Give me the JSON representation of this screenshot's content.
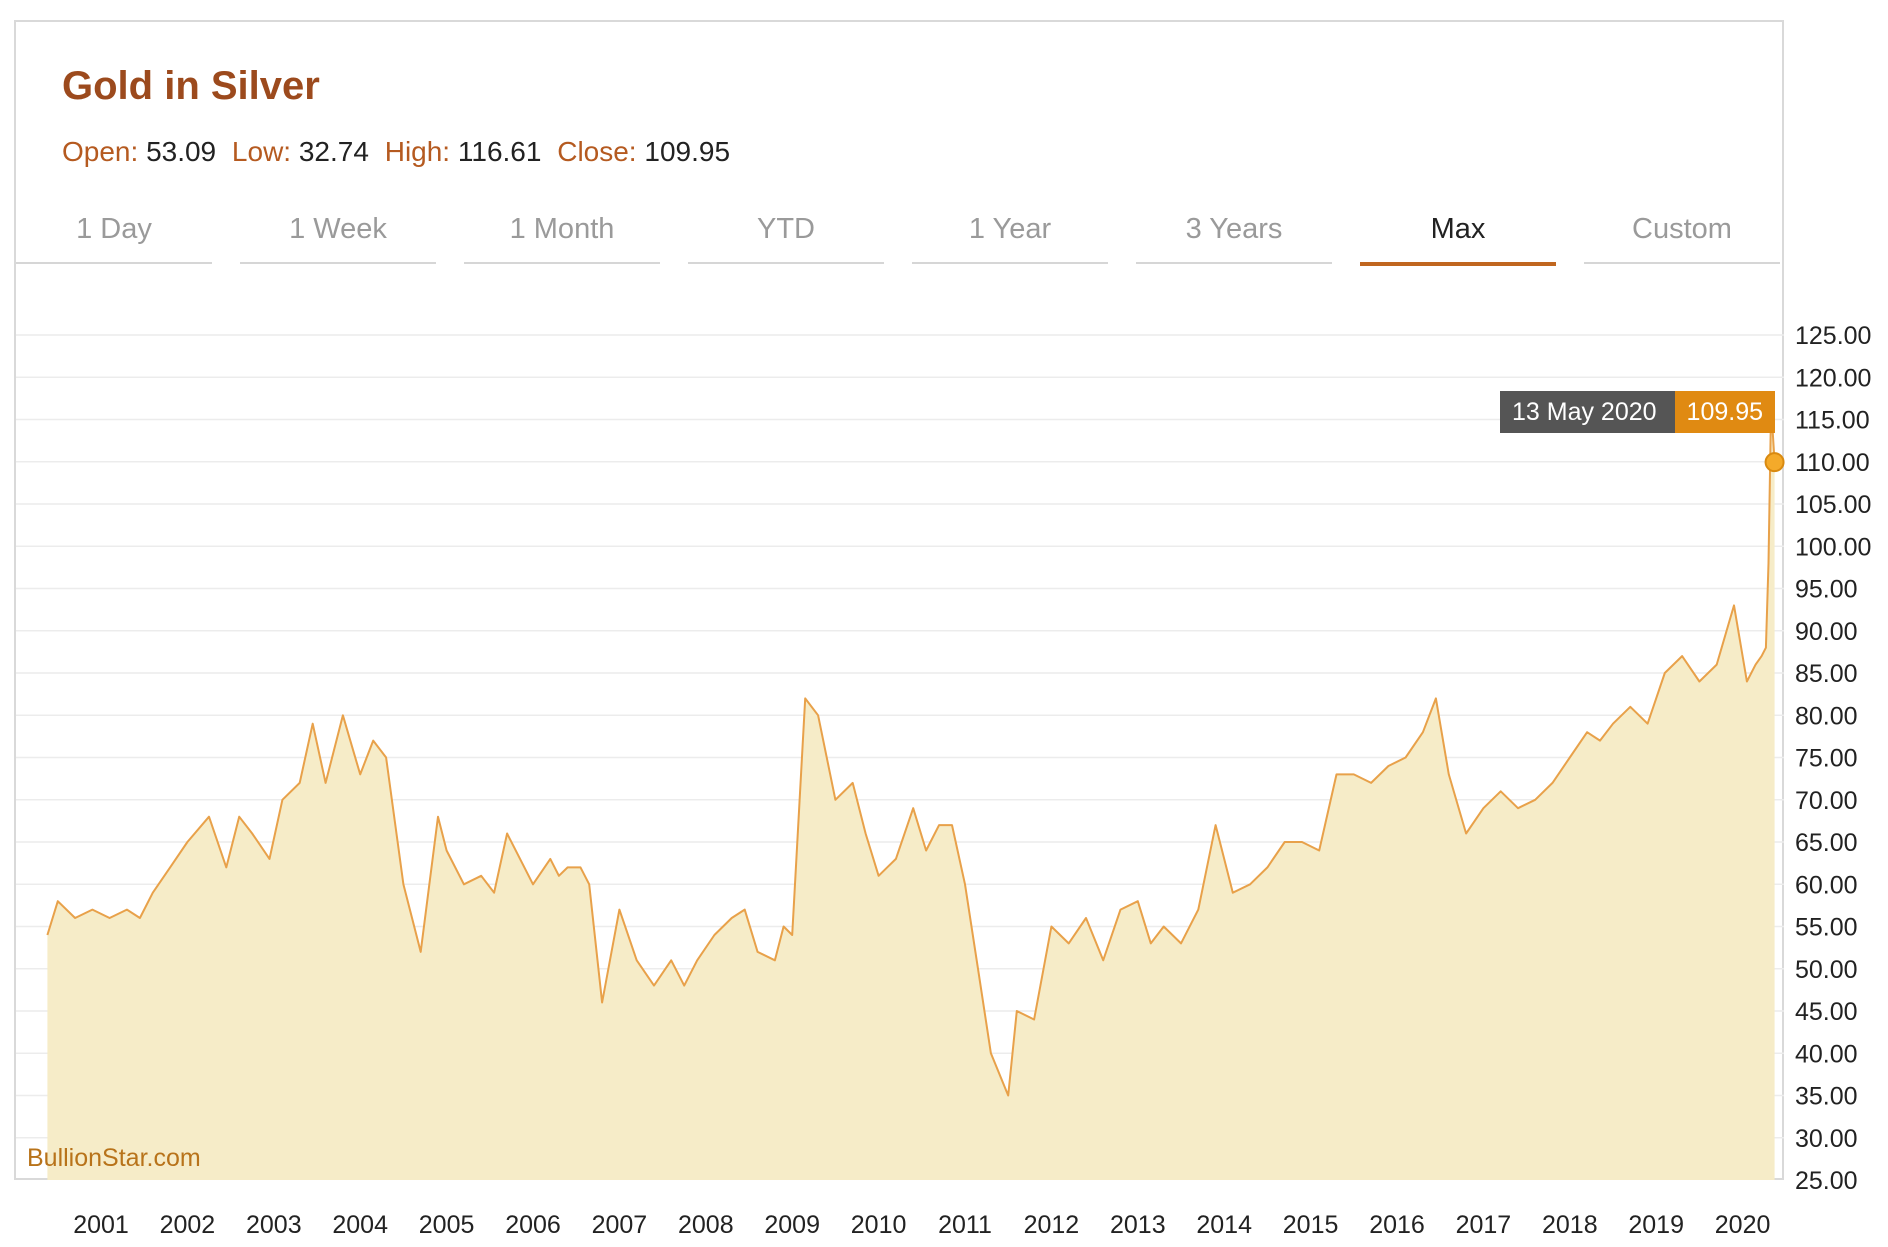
{
  "chart_data": {
    "type": "area",
    "title": "Gold in Silver",
    "stats": {
      "open_label": "Open:",
      "open": "53.09",
      "low_label": "Low:",
      "low": "32.74",
      "high_label": "High:",
      "high": "116.61",
      "close_label": "Close:",
      "close": "109.95"
    },
    "tabs": [
      "1 Day",
      "1 Week",
      "1 Month",
      "YTD",
      "1 Year",
      "3 Years",
      "Max",
      "Custom"
    ],
    "active_tab": "Max",
    "x_ticks": [
      "2001",
      "2002",
      "2003",
      "2004",
      "2005",
      "2006",
      "2007",
      "2008",
      "2009",
      "2010",
      "2011",
      "2012",
      "2013",
      "2014",
      "2015",
      "2016",
      "2017",
      "2018",
      "2019",
      "2020"
    ],
    "y_ticks": [
      "25.00",
      "30.00",
      "35.00",
      "40.00",
      "45.00",
      "50.00",
      "55.00",
      "60.00",
      "65.00",
      "70.00",
      "75.00",
      "80.00",
      "85.00",
      "90.00",
      "95.00",
      "100.00",
      "105.00",
      "110.00",
      "115.00",
      "120.00",
      "125.00"
    ],
    "ylim": [
      25,
      125
    ],
    "xlim": [
      2000.38,
      2020.37
    ],
    "grid": true,
    "series": [
      {
        "x": [
          2000.38,
          2000.5,
          2000.7,
          2000.9,
          2001.1,
          2001.3,
          2001.45,
          2001.6,
          2001.8,
          2002.0,
          2002.25,
          2002.45,
          2002.6,
          2002.75,
          2002.95,
          2003.1,
          2003.3,
          2003.45,
          2003.6,
          2003.8,
          2004.0,
          2004.15,
          2004.3,
          2004.5,
          2004.7,
          2004.9,
          2005.0,
          2005.2,
          2005.4,
          2005.55,
          2005.7,
          2005.9,
          2006.0,
          2006.2,
          2006.3,
          2006.4,
          2006.55,
          2006.65,
          2006.8,
          2007.0,
          2007.2,
          2007.4,
          2007.6,
          2007.75,
          2007.9,
          2008.1,
          2008.3,
          2008.45,
          2008.6,
          2008.8,
          2008.9,
          2009.0,
          2009.15,
          2009.3,
          2009.5,
          2009.7,
          2009.85,
          2010.0,
          2010.2,
          2010.4,
          2010.55,
          2010.7,
          2010.85,
          2011.0,
          2011.15,
          2011.3,
          2011.5,
          2011.6,
          2011.8,
          2012.0,
          2012.2,
          2012.4,
          2012.6,
          2012.8,
          2013.0,
          2013.15,
          2013.3,
          2013.5,
          2013.7,
          2013.9,
          2014.1,
          2014.3,
          2014.5,
          2014.7,
          2014.9,
          2015.1,
          2015.3,
          2015.5,
          2015.7,
          2015.9,
          2016.1,
          2016.3,
          2016.45,
          2016.6,
          2016.8,
          2017.0,
          2017.2,
          2017.4,
          2017.6,
          2017.8,
          2018.0,
          2018.2,
          2018.35,
          2018.5,
          2018.7,
          2018.9,
          2019.1,
          2019.3,
          2019.5,
          2019.7,
          2019.9,
          2020.05,
          2020.15,
          2020.22,
          2020.27,
          2020.3,
          2020.33,
          2020.37
        ],
        "y": [
          54,
          58,
          56,
          57,
          56,
          57,
          56,
          59,
          62,
          65,
          68,
          62,
          68,
          66,
          63,
          70,
          72,
          79,
          72,
          80,
          73,
          77,
          75,
          60,
          52,
          68,
          64,
          60,
          61,
          59,
          66,
          62,
          60,
          63,
          61,
          62,
          62,
          60,
          46,
          57,
          51,
          48,
          51,
          48,
          51,
          54,
          56,
          57,
          52,
          51,
          55,
          54,
          82,
          80,
          70,
          72,
          66,
          61,
          63,
          69,
          64,
          67,
          67,
          60,
          50,
          40,
          35,
          45,
          44,
          55,
          53,
          56,
          51,
          57,
          58,
          53,
          55,
          53,
          57,
          67,
          59,
          60,
          62,
          65,
          65,
          64,
          73,
          73,
          72,
          74,
          75,
          78,
          82,
          73,
          66,
          69,
          71,
          69,
          70,
          72,
          75,
          78,
          77,
          79,
          81,
          79,
          85,
          87,
          84,
          86,
          93,
          84,
          86,
          87,
          88,
          98,
          116.6,
          109.95
        ]
      }
    ],
    "tooltip": {
      "date": "13 May 2020",
      "value": "109.95"
    },
    "watermark": "BullionStar.com",
    "colors": {
      "line": "#e8a14a",
      "fill": "#f6ecc8",
      "marker": "#f4aa2a",
      "title": "#9c4a1d",
      "label": "#b55a20",
      "active_tab_underline": "#c0661f",
      "tooltip_date_bg": "#555555",
      "tooltip_value_bg": "#e08a12"
    }
  }
}
